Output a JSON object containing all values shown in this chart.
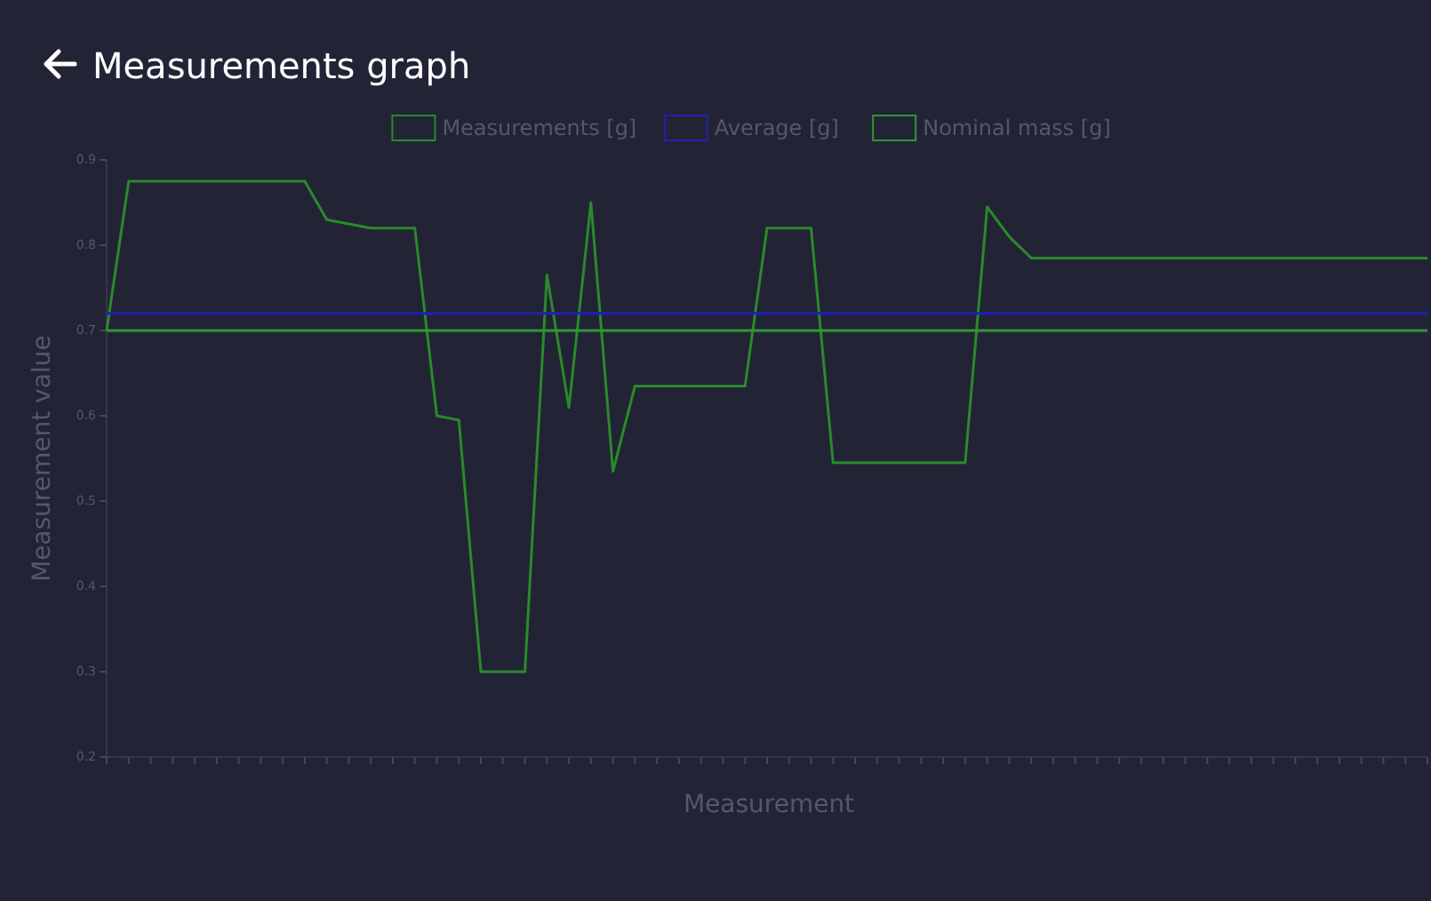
{
  "chart_data": {
    "type": "line",
    "title": "Measurements graph",
    "xlabel": "Measurement",
    "ylabel": "Measurement value",
    "categories": [
      null,
      null,
      null,
      null,
      null,
      null,
      null,
      null,
      null,
      null,
      null,
      null,
      null,
      null,
      null,
      null,
      null,
      null,
      null,
      null,
      null,
      null,
      null,
      null,
      null,
      null,
      null,
      null,
      null,
      null,
      null,
      null,
      null,
      null,
      null,
      null,
      null,
      null,
      null,
      null,
      null,
      null,
      null,
      null,
      null,
      null,
      null,
      null,
      null,
      null,
      null,
      null,
      null,
      null,
      null,
      null,
      null,
      null,
      null,
      null,
      null
    ],
    "series": [
      {
        "name": "Measurements [g]",
        "color": "#2a8a2a",
        "values": [
          0.7,
          0.875,
          0.875,
          0.875,
          0.875,
          0.875,
          0.875,
          0.875,
          0.875,
          0.875,
          0.83,
          0.825,
          0.82,
          0.82,
          0.82,
          0.6,
          0.595,
          0.3,
          0.3,
          0.3,
          0.765,
          0.61,
          0.85,
          0.535,
          0.635,
          0.635,
          0.635,
          0.635,
          0.635,
          0.635,
          0.82,
          0.82,
          0.82,
          0.545,
          0.545,
          0.545,
          0.545,
          0.545,
          0.545,
          0.545,
          0.845,
          0.81,
          0.785,
          0.785,
          0.785,
          0.785,
          0.785,
          0.785,
          0.785,
          0.785,
          0.785,
          0.785,
          0.785,
          0.785,
          0.785,
          0.785,
          0.785,
          0.785,
          0.785,
          0.785,
          0.785
        ]
      },
      {
        "name": "Average [g]",
        "color": "#2020b0",
        "values": [
          0.72,
          0.72,
          0.72,
          0.72,
          0.72,
          0.72,
          0.72,
          0.72,
          0.72,
          0.72,
          0.72,
          0.72,
          0.72,
          0.72,
          0.72,
          0.72,
          0.72,
          0.72,
          0.72,
          0.72,
          0.72,
          0.72,
          0.72,
          0.72,
          0.72,
          0.72,
          0.72,
          0.72,
          0.72,
          0.72,
          0.72,
          0.72,
          0.72,
          0.72,
          0.72,
          0.72,
          0.72,
          0.72,
          0.72,
          0.72,
          0.72,
          0.72,
          0.72,
          0.72,
          0.72,
          0.72,
          0.72,
          0.72,
          0.72,
          0.72,
          0.72,
          0.72,
          0.72,
          0.72,
          0.72,
          0.72,
          0.72,
          0.72,
          0.72,
          0.72,
          0.72
        ]
      },
      {
        "name": "Nominal mass [g]",
        "color": "#2e9a2e",
        "values": [
          0.7,
          0.7,
          0.7,
          0.7,
          0.7,
          0.7,
          0.7,
          0.7,
          0.7,
          0.7,
          0.7,
          0.7,
          0.7,
          0.7,
          0.7,
          0.7,
          0.7,
          0.7,
          0.7,
          0.7,
          0.7,
          0.7,
          0.7,
          0.7,
          0.7,
          0.7,
          0.7,
          0.7,
          0.7,
          0.7,
          0.7,
          0.7,
          0.7,
          0.7,
          0.7,
          0.7,
          0.7,
          0.7,
          0.7,
          0.7,
          0.7,
          0.7,
          0.7,
          0.7,
          0.7,
          0.7,
          0.7,
          0.7,
          0.7,
          0.7,
          0.7,
          0.7,
          0.7,
          0.7,
          0.7,
          0.7,
          0.7,
          0.7,
          0.7,
          0.7,
          0.7
        ]
      }
    ],
    "ylim": [
      0.2,
      0.9
    ],
    "yticks": [
      0.2,
      0.3,
      0.4,
      0.5,
      0.6,
      0.7,
      0.8,
      0.9
    ],
    "legend": "top",
    "tick_labels": "y",
    "grid": false,
    "marker": "none",
    "line_style": "solid"
  }
}
